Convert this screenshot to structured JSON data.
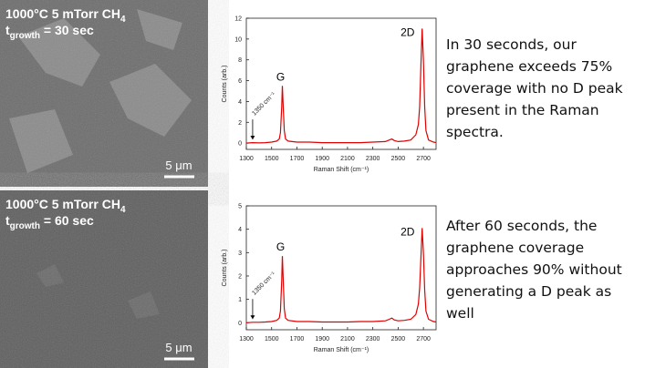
{
  "panels": [
    {
      "condition": "1000°C 5 mTorr CH",
      "condition_sub": "4",
      "time_var": "t",
      "time_sub": "growth",
      "time_value": " = 30 sec",
      "scale_bar": "5 μm",
      "caption": "In 30 seconds, our graphene exceeds 75% coverage with no D peak present in the Raman spectra."
    },
    {
      "condition": "1000°C 5 mTorr CH",
      "condition_sub": "4",
      "time_var": "t",
      "time_sub": "growth",
      "time_value": " = 60 sec",
      "scale_bar": "5 μm",
      "caption": "After 60 seconds, the graphene coverage approaches 90% without generating a D peak as well"
    }
  ],
  "chart_data": [
    {
      "type": "line",
      "x_label": "Raman Shift (cm⁻¹)",
      "y_label": "Counts (arb.)",
      "peak_labels": [
        "G",
        "2D"
      ],
      "arrow_label": "1350 cm⁻¹",
      "color": "#e00000",
      "x": [
        1300,
        1350,
        1400,
        1450,
        1500,
        1540,
        1560,
        1570,
        1580,
        1585,
        1590,
        1600,
        1610,
        1630,
        1700,
        1800,
        1900,
        2000,
        2100,
        2200,
        2300,
        2400,
        2430,
        2450,
        2470,
        2500,
        2550,
        2600,
        2640,
        2660,
        2670,
        2680,
        2690,
        2700,
        2710,
        2720,
        2740,
        2780,
        2800
      ],
      "values": [
        0,
        0.05,
        0.02,
        0.05,
        0.1,
        0.2,
        0.4,
        1.0,
        3.5,
        5.5,
        4.0,
        1.2,
        0.4,
        0.2,
        0.1,
        0.1,
        0.05,
        0.05,
        0.05,
        0.05,
        0.1,
        0.15,
        0.3,
        0.4,
        0.25,
        0.15,
        0.2,
        0.3,
        0.8,
        1.8,
        3.5,
        7.5,
        11,
        8,
        3.5,
        1.2,
        0.3,
        0.1,
        0.05
      ],
      "xlim": [
        1300,
        2800
      ],
      "xticks": [
        1300,
        1500,
        1700,
        1900,
        2100,
        2300,
        2500,
        2700
      ],
      "ylim": [
        -0.6,
        12
      ],
      "yticks": [
        0,
        2,
        4,
        6,
        8,
        10,
        12
      ]
    },
    {
      "type": "line",
      "x_label": "Raman Shift (cm⁻¹)",
      "y_label": "Counts (arb.)",
      "peak_labels": [
        "G",
        "2D"
      ],
      "arrow_label": "1350 cm⁻¹",
      "color": "#e00000",
      "x": [
        1300,
        1350,
        1400,
        1450,
        1500,
        1540,
        1560,
        1570,
        1580,
        1585,
        1590,
        1600,
        1610,
        1630,
        1700,
        1800,
        1900,
        2000,
        2100,
        2200,
        2300,
        2400,
        2430,
        2450,
        2470,
        2500,
        2550,
        2600,
        2640,
        2660,
        2670,
        2680,
        2690,
        2700,
        2710,
        2720,
        2740,
        2780,
        2800
      ],
      "values": [
        0,
        0.02,
        0.02,
        0.03,
        0.05,
        0.1,
        0.2,
        0.5,
        1.8,
        2.85,
        2.1,
        0.6,
        0.2,
        0.1,
        0.05,
        0.05,
        0.03,
        0.03,
        0.03,
        0.05,
        0.05,
        0.08,
        0.15,
        0.2,
        0.12,
        0.08,
        0.1,
        0.15,
        0.35,
        0.8,
        1.5,
        2.8,
        4.05,
        3.0,
        1.4,
        0.5,
        0.15,
        0.05,
        0.03
      ],
      "xlim": [
        1300,
        2800
      ],
      "xticks": [
        1300,
        1500,
        1700,
        1900,
        2100,
        2300,
        2500,
        2700
      ],
      "ylim": [
        -0.3,
        5
      ],
      "yticks": [
        0,
        1,
        2,
        3,
        4,
        5
      ]
    }
  ]
}
